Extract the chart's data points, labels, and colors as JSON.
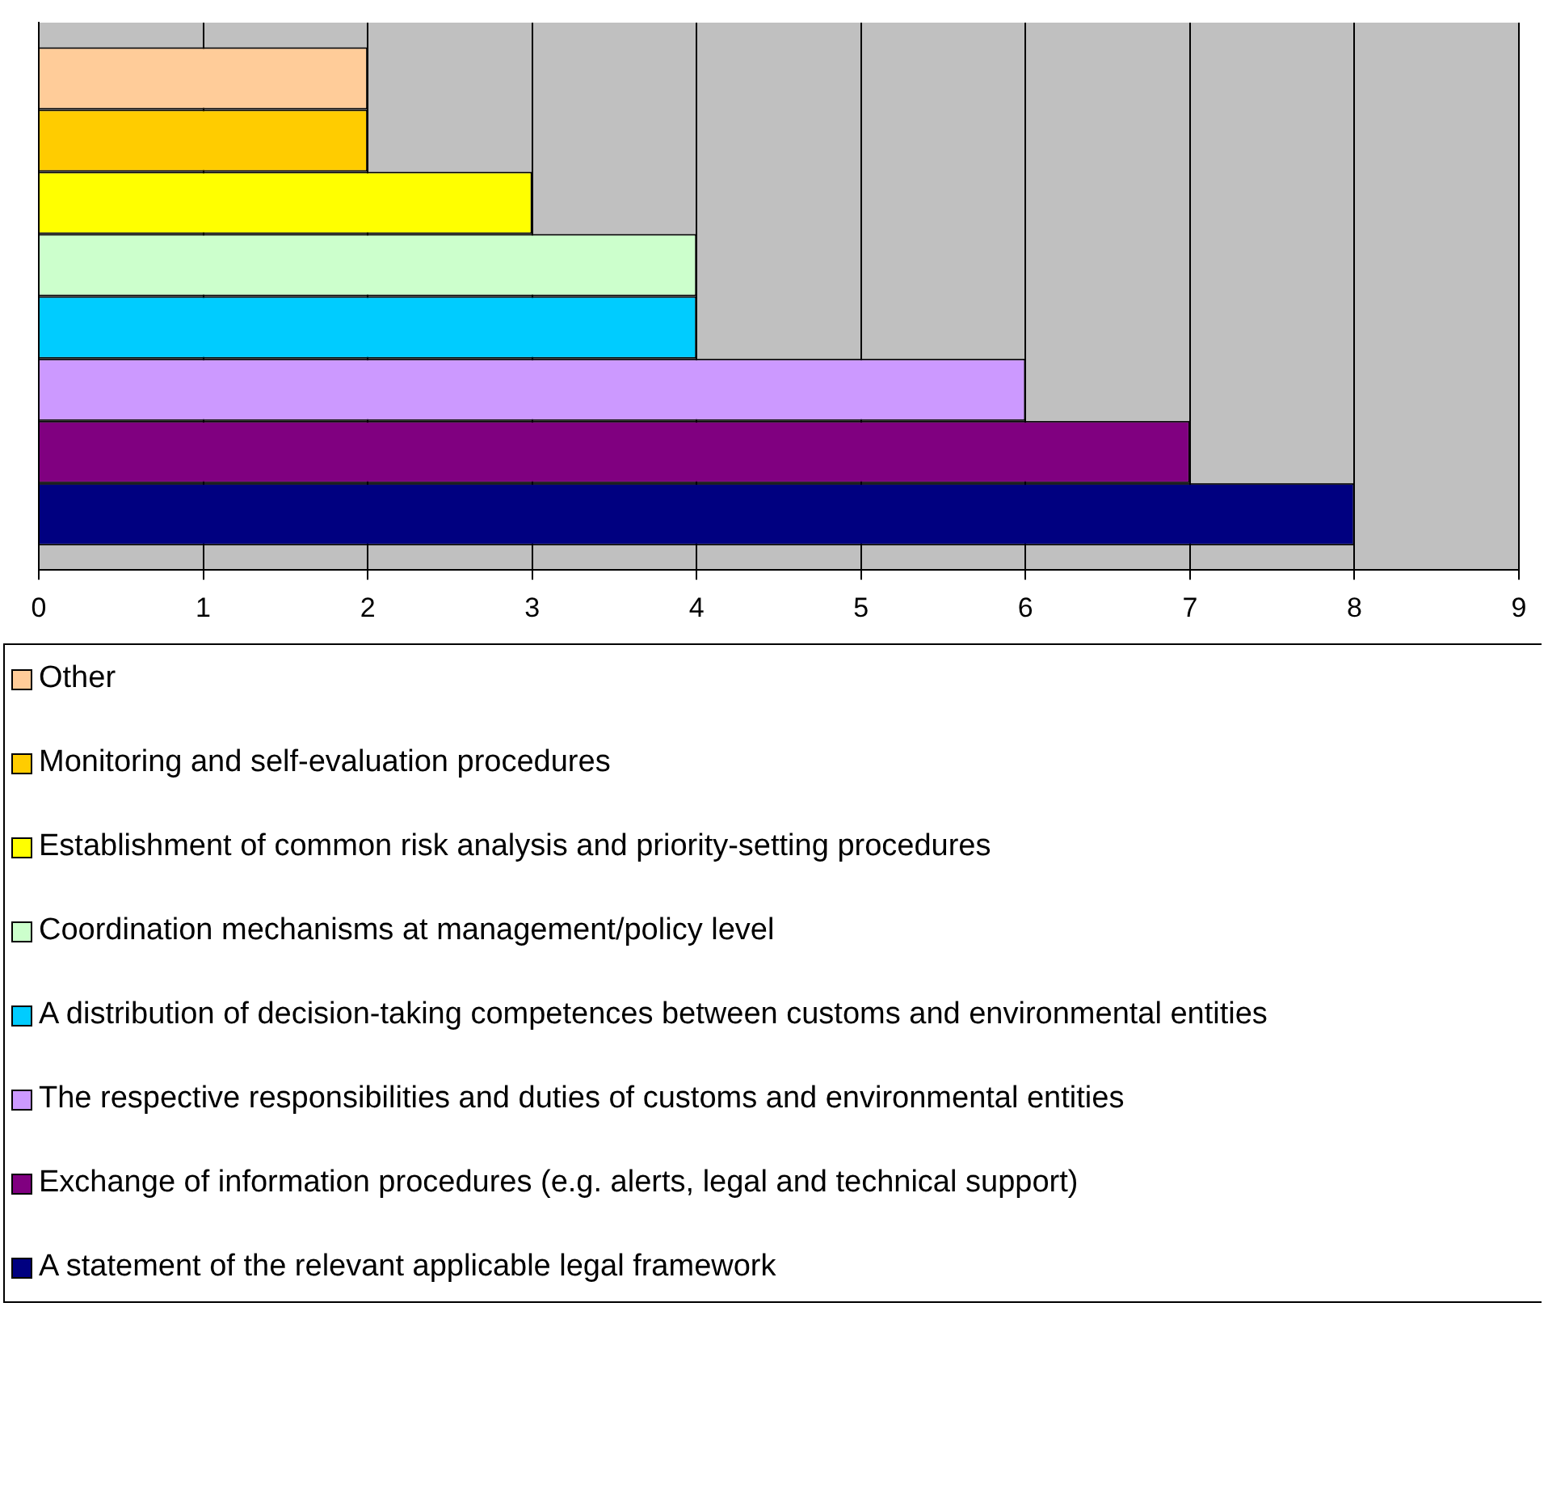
{
  "chart_data": {
    "type": "bar",
    "orientation": "horizontal",
    "categories": [
      null
    ],
    "series": [
      {
        "name": "Other",
        "color": "#ffcc99",
        "values": [
          2
        ]
      },
      {
        "name": "Monitoring and self-evaluation procedures",
        "color": "#ffcc00",
        "values": [
          2
        ]
      },
      {
        "name": "Establishment of common risk analysis and priority-setting procedures",
        "color": "#ffff00",
        "values": [
          3
        ]
      },
      {
        "name": "Coordination mechanisms  at management/policy level",
        "color": "#ccffcc",
        "values": [
          4
        ]
      },
      {
        "name": "A distribution of decision-taking competences between customs and environmental entities",
        "color": "#00ccff",
        "values": [
          4
        ]
      },
      {
        "name": "The respective responsibilities and duties of customs and environmental entities",
        "color": "#cc99ff",
        "values": [
          6
        ]
      },
      {
        "name": "Exchange of information procedures (e.g. alerts, legal and technical support)",
        "color": "#800080",
        "values": [
          7
        ]
      },
      {
        "name": "A statement of the relevant applicable legal framework",
        "color": "#000080",
        "values": [
          8
        ]
      }
    ],
    "xlim": [
      0,
      9
    ],
    "xticks": [
      0,
      1,
      2,
      3,
      4,
      5,
      6,
      7,
      8,
      9
    ],
    "grid": "x",
    "legend": "bottom"
  }
}
